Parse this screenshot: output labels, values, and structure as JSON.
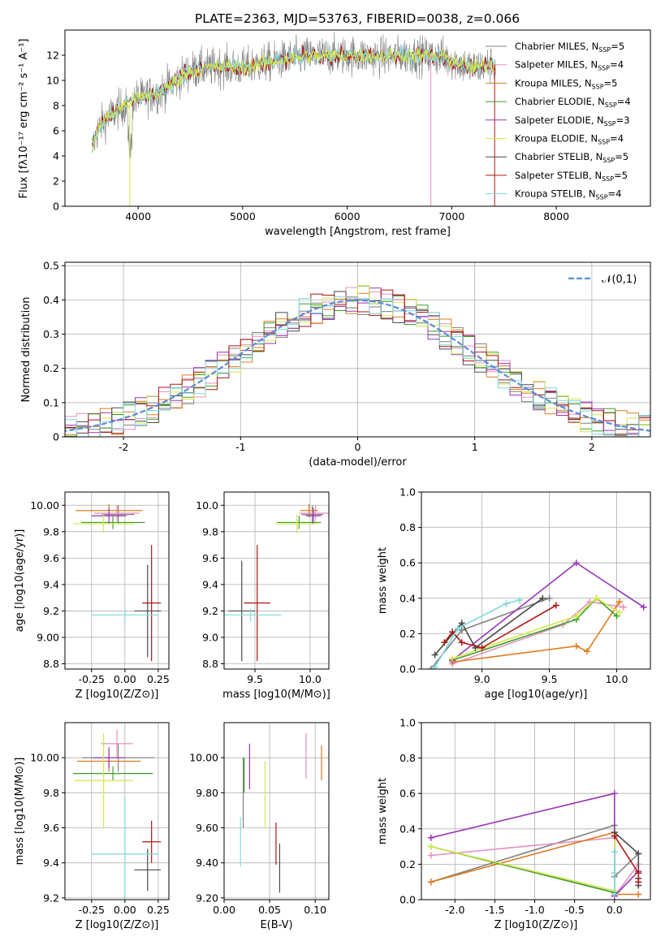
{
  "figure": {
    "title": "PLATE=2363, MJD=53763, FIBERID=0038, z=0.066"
  },
  "models": [
    {
      "name": "Chabrier MILES",
      "n": "5",
      "color": "#808080"
    },
    {
      "name": "Salpeter MILES",
      "n": "4",
      "color": "#e88fbf"
    },
    {
      "name": "Kroupa MILES",
      "n": "5",
      "color": "#e07b1f"
    },
    {
      "name": "Chabrier ELODIE",
      "n": "4",
      "color": "#3d9e2a"
    },
    {
      "name": "Salpeter ELODIE",
      "n": "3",
      "color": "#9a35b8"
    },
    {
      "name": "Kroupa ELODIE",
      "n": "4",
      "color": "#d3e84a"
    },
    {
      "name": "Chabrier STELIB",
      "n": "5",
      "color": "#4a4a4a"
    },
    {
      "name": "Salpeter STELIB",
      "n": "5",
      "color": "#b01515"
    },
    {
      "name": "Kroupa STELIB",
      "n": "4",
      "color": "#7fd9dd"
    }
  ],
  "chart_data": [
    {
      "id": "spectrum",
      "type": "line",
      "xlabel": "wavelength [Angstrom, rest frame]",
      "ylabel": "Flux [f_λ10^-17 erg cm^-2 s^-1 A^-1]",
      "xlim": [
        3300,
        8900
      ],
      "ylim": [
        0,
        14
      ],
      "xticks": [
        4000,
        5000,
        6000,
        7000,
        8000
      ],
      "yticks": [
        0,
        2,
        4,
        6,
        8,
        10,
        12
      ],
      "legend_position": "right",
      "series": [
        {
          "x": [
            3560,
            3620,
            3700,
            3800,
            3900,
            4000,
            4200,
            4500,
            4800,
            5000,
            5300,
            5600,
            6000,
            6300,
            6600,
            6900,
            7200,
            7420
          ],
          "y": [
            4.6,
            6.2,
            7.0,
            7.6,
            8.2,
            8.6,
            9.0,
            10.8,
            11.1,
            11.0,
            11.5,
            11.9,
            12.0,
            11.9,
            12.0,
            11.9,
            11.0,
            11.3
          ]
        }
      ]
    },
    {
      "id": "residuals",
      "type": "line",
      "xlabel": "(data-model)/error",
      "ylabel": "Normed distribution",
      "xlim": [
        -2.5,
        2.5
      ],
      "ylim": [
        0,
        0.51
      ],
      "xticks": [
        -2,
        -1,
        0,
        1,
        2
      ],
      "yticks": [
        0.0,
        0.1,
        0.2,
        0.3,
        0.4,
        0.5
      ],
      "grid": true,
      "legend": {
        "label": "𝒩(0,1)",
        "position": "top-right",
        "color": "#5b8bd9"
      }
    },
    {
      "id": "age_vs_Z",
      "type": "scatter",
      "xlabel": "Z [log10(Z/Z⊙)]",
      "ylabel": "age [log10(age/yr)]",
      "xlim": [
        -0.45,
        0.33
      ],
      "ylim": [
        8.76,
        10.1
      ],
      "xticks": [
        -0.25,
        0.0,
        0.25
      ],
      "yticks": [
        8.8,
        9.0,
        9.2,
        9.4,
        9.6,
        9.8,
        10.0
      ],
      "grid": true,
      "points": [
        {
          "x": -0.05,
          "y": 9.93,
          "xerr": 0.12,
          "yerr": 0.07
        },
        {
          "x": -0.06,
          "y": 9.94,
          "xerr": 0.17,
          "yerr": 0.06
        },
        {
          "x": -0.12,
          "y": 9.96,
          "xerr": 0.25,
          "yerr": 0.05
        },
        {
          "x": -0.09,
          "y": 9.87,
          "xerr": 0.24,
          "yerr": 0.05
        },
        {
          "x": -0.12,
          "y": 9.92,
          "xerr": 0.13,
          "yerr": 0.06
        },
        {
          "x": -0.16,
          "y": 9.86,
          "xerr": 0.23,
          "yerr": 0.07
        },
        {
          "x": 0.17,
          "y": 9.2,
          "xerr": 0.1,
          "yerr": 0.35
        },
        {
          "x": 0.2,
          "y": 9.26,
          "xerr": 0.07,
          "yerr": 0.44
        },
        {
          "x": 0.0,
          "y": 9.17,
          "xerr": 0.25,
          "yerr": 0.05
        }
      ]
    },
    {
      "id": "age_vs_mass",
      "type": "scatter",
      "xlabel": "mass [log10(M/M⊙)]",
      "ylabel": "",
      "xlim": [
        9.22,
        10.17
      ],
      "ylim": [
        8.76,
        10.1
      ],
      "xticks": [
        9.5,
        10.0
      ],
      "yticks": [
        8.8,
        9.0,
        9.2,
        9.4,
        9.6,
        9.8,
        10.0
      ],
      "grid": true,
      "points": [
        {
          "x": 10.02,
          "y": 9.93,
          "xerr": 0.1,
          "yerr": 0.07
        },
        {
          "x": 10.05,
          "y": 9.94,
          "xerr": 0.15,
          "yerr": 0.06
        },
        {
          "x": 9.99,
          "y": 9.96,
          "xerr": 0.08,
          "yerr": 0.05
        },
        {
          "x": 9.9,
          "y": 9.87,
          "xerr": 0.2,
          "yerr": 0.05
        },
        {
          "x": 10.03,
          "y": 9.92,
          "xerr": 0.07,
          "yerr": 0.06
        },
        {
          "x": 9.88,
          "y": 9.86,
          "xerr": 0.2,
          "yerr": 0.07
        },
        {
          "x": 9.38,
          "y": 9.2,
          "xerr": 0.12,
          "yerr": 0.38
        },
        {
          "x": 9.52,
          "y": 9.26,
          "xerr": 0.12,
          "yerr": 0.44
        },
        {
          "x": 9.46,
          "y": 9.17,
          "xerr": 0.28,
          "yerr": 0.05
        }
      ]
    },
    {
      "id": "mass_weight_vs_age",
      "type": "line",
      "xlabel": "age [log10(age/yr)]",
      "ylabel": "mass weight",
      "xlim": [
        8.55,
        10.25
      ],
      "ylim": [
        0.0,
        1.0
      ],
      "xticks": [
        9.0,
        9.5,
        10.0
      ],
      "yticks": [
        0.0,
        0.2,
        0.4,
        0.6,
        0.8,
        1.0
      ],
      "grid": true,
      "series": [
        {
          "x": [
            8.62,
            8.85,
            9.5
          ],
          "y": [
            0.0,
            0.22,
            0.4
          ]
        },
        {
          "x": [
            8.78,
            9.6,
            9.8,
            10.05
          ],
          "y": [
            0.03,
            0.25,
            0.38,
            0.35
          ]
        },
        {
          "x": [
            8.78,
            9.7,
            9.78,
            10.02
          ],
          "y": [
            0.04,
            0.13,
            0.1,
            0.38
          ]
        },
        {
          "x": [
            8.78,
            9.7,
            9.85,
            10.0
          ],
          "y": [
            0.05,
            0.28,
            0.4,
            0.3
          ]
        },
        {
          "x": [
            8.78,
            9.7,
            10.2
          ],
          "y": [
            0.05,
            0.6,
            0.35
          ]
        },
        {
          "x": [
            8.78,
            9.7,
            9.85,
            10.02
          ],
          "y": [
            0.06,
            0.3,
            0.4,
            0.32
          ]
        },
        {
          "x": [
            8.65,
            8.85,
            8.95,
            9.45
          ],
          "y": [
            0.08,
            0.26,
            0.12,
            0.4
          ]
        },
        {
          "x": [
            8.72,
            8.78,
            8.85,
            9.0,
            9.55
          ],
          "y": [
            0.15,
            0.21,
            0.15,
            0.12,
            0.36
          ]
        },
        {
          "x": [
            8.65,
            8.82,
            9.18,
            9.28
          ],
          "y": [
            0.01,
            0.23,
            0.37,
            0.39
          ]
        }
      ]
    },
    {
      "id": "mass_vs_Z",
      "type": "scatter",
      "xlabel": "Z [log10(Z/Z⊙)]",
      "ylabel": "mass [log10(M/M⊙)]",
      "xlim": [
        -0.45,
        0.33
      ],
      "ylim": [
        9.19,
        10.2
      ],
      "xticks": [
        -0.25,
        0.0,
        0.25
      ],
      "yticks": [
        9.2,
        9.4,
        9.6,
        9.8,
        10.0
      ],
      "grid": true,
      "points": [
        {
          "x": -0.05,
          "y": 10.0,
          "xerr": 0.27,
          "yerr": 0.08
        },
        {
          "x": -0.06,
          "y": 10.08,
          "xerr": 0.12,
          "yerr": 0.08
        },
        {
          "x": -0.12,
          "y": 9.98,
          "xerr": 0.24,
          "yerr": 0.06
        },
        {
          "x": -0.09,
          "y": 9.91,
          "xerr": 0.3,
          "yerr": 0.04
        },
        {
          "x": -0.12,
          "y": 10.0,
          "xerr": 0.12,
          "yerr": 0.06
        },
        {
          "x": -0.16,
          "y": 9.87,
          "xerr": 0.22,
          "yerr": 0.27
        },
        {
          "x": 0.17,
          "y": 9.36,
          "xerr": 0.1,
          "yerr": 0.12
        },
        {
          "x": 0.2,
          "y": 9.52,
          "xerr": 0.07,
          "yerr": 0.12
        },
        {
          "x": 0.0,
          "y": 9.45,
          "xerr": 0.25,
          "yerr": 0.32
        }
      ]
    },
    {
      "id": "mass_vs_ebv",
      "type": "scatter",
      "xlabel": "E(B-V)",
      "ylabel": "",
      "xlim": [
        0.0,
        0.115
      ],
      "ylim": [
        9.19,
        10.2
      ],
      "xticks": [
        0.0,
        0.05,
        0.1
      ],
      "yticks": [
        9.2,
        9.4,
        9.6,
        9.8,
        10.0
      ],
      "grid": true,
      "points": [
        {
          "x": 0.021,
          "y": 9.8,
          "yerr": 0.2
        },
        {
          "x": 0.09,
          "y": 10.01,
          "yerr": 0.13
        },
        {
          "x": 0.107,
          "y": 9.97,
          "yerr": 0.1
        },
        {
          "x": 0.022,
          "y": 9.9,
          "yerr": 0.1
        },
        {
          "x": 0.028,
          "y": 9.95,
          "yerr": 0.13
        },
        {
          "x": 0.045,
          "y": 9.79,
          "yerr": 0.19
        },
        {
          "x": 0.061,
          "y": 9.37,
          "yerr": 0.14
        },
        {
          "x": 0.057,
          "y": 9.51,
          "yerr": 0.12
        },
        {
          "x": 0.018,
          "y": 9.52,
          "yerr": 0.14
        }
      ]
    },
    {
      "id": "mass_weight_vs_Z",
      "type": "line",
      "xlabel": "Z [log10(Z/Z⊙)]",
      "ylabel": "mass weight",
      "xlim": [
        -2.42,
        0.45
      ],
      "ylim": [
        0.0,
        1.0
      ],
      "xticks": [
        -2.0,
        -1.5,
        -1.0,
        -0.5,
        0.0
      ],
      "yticks": [
        0.0,
        0.2,
        0.4,
        0.6,
        0.8,
        1.0
      ],
      "grid": true,
      "series": [
        {
          "x": [
            -2.3,
            0.0,
            0.0,
            0.3
          ],
          "y": [
            0.1,
            0.42,
            0.13,
            0.26
          ]
        },
        {
          "x": [
            -2.3,
            0.0,
            0.0,
            0.3
          ],
          "y": [
            0.25,
            0.35,
            0.02,
            0.2
          ]
        },
        {
          "x": [
            -2.3,
            0.0,
            0.0,
            0.3
          ],
          "y": [
            0.1,
            0.38,
            0.03,
            0.03
          ]
        },
        {
          "x": [
            -2.3,
            0.0,
            0.0
          ],
          "y": [
            0.3,
            0.04,
            0.36
          ]
        },
        {
          "x": [
            -2.3,
            0.0,
            0.0,
            0.3
          ],
          "y": [
            0.35,
            0.6,
            0.02,
            0.16
          ]
        },
        {
          "x": [
            -2.3,
            0.0,
            0.0
          ],
          "y": [
            0.3,
            0.05,
            0.38
          ]
        },
        {
          "x": [
            0.0,
            0.3,
            0.3,
            0.3
          ],
          "y": [
            0.38,
            0.26,
            0.08,
            0.12
          ]
        },
        {
          "x": [
            0.0,
            0.3,
            0.3
          ],
          "y": [
            0.36,
            0.15,
            0.1
          ]
        },
        {
          "x": [
            0.0,
            0.0,
            0.0
          ],
          "y": [
            0.27,
            0.15,
            0.03
          ]
        }
      ]
    }
  ]
}
